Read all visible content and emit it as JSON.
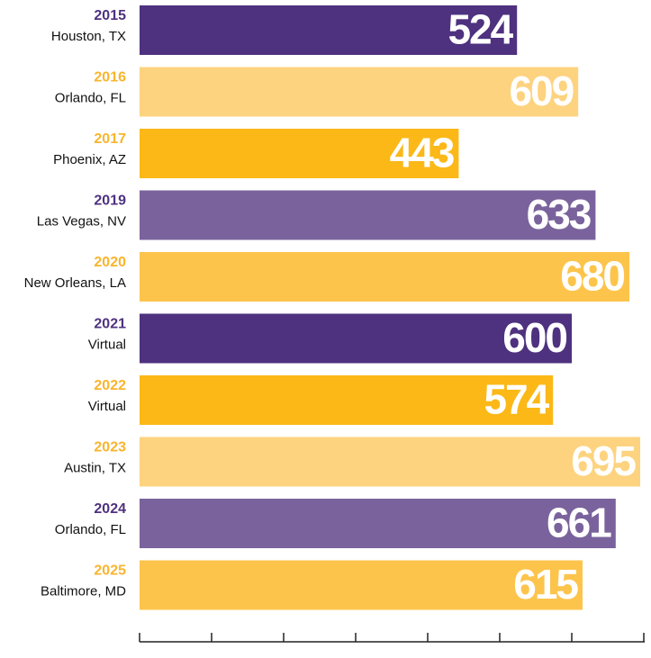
{
  "chart_data": {
    "type": "barh",
    "categories": [
      "2015",
      "2016",
      "2017",
      "2019",
      "2020",
      "2021",
      "2022",
      "2023",
      "2024",
      "2025"
    ],
    "locations": [
      "Houston, TX",
      "Orlando, FL",
      "Phoenix, AZ",
      "Las Vegas, NV",
      "New Orleans, LA",
      "Virtual",
      "Virtual",
      "Austin, TX",
      "Orlando, FL",
      "Baltimore, MD"
    ],
    "values": [
      524,
      609,
      443,
      633,
      680,
      600,
      574,
      695,
      661,
      615
    ],
    "colors": [
      "#4e317f",
      "#fdd37f",
      "#fbb817",
      "#7a639c",
      "#fdc44c",
      "#4e317f",
      "#fbb817",
      "#fdd37f",
      "#7a639c",
      "#fdc44c"
    ],
    "year_colors": [
      "#4e317f",
      "#f9b42c",
      "#f9b42c",
      "#4e317f",
      "#f9b42c",
      "#4e317f",
      "#f9b42c",
      "#f9b42c",
      "#4e317f",
      "#f9b42c"
    ],
    "xlim": [
      0,
      700
    ],
    "xticks": [
      0,
      100,
      200,
      300,
      400,
      500,
      600,
      700
    ]
  }
}
